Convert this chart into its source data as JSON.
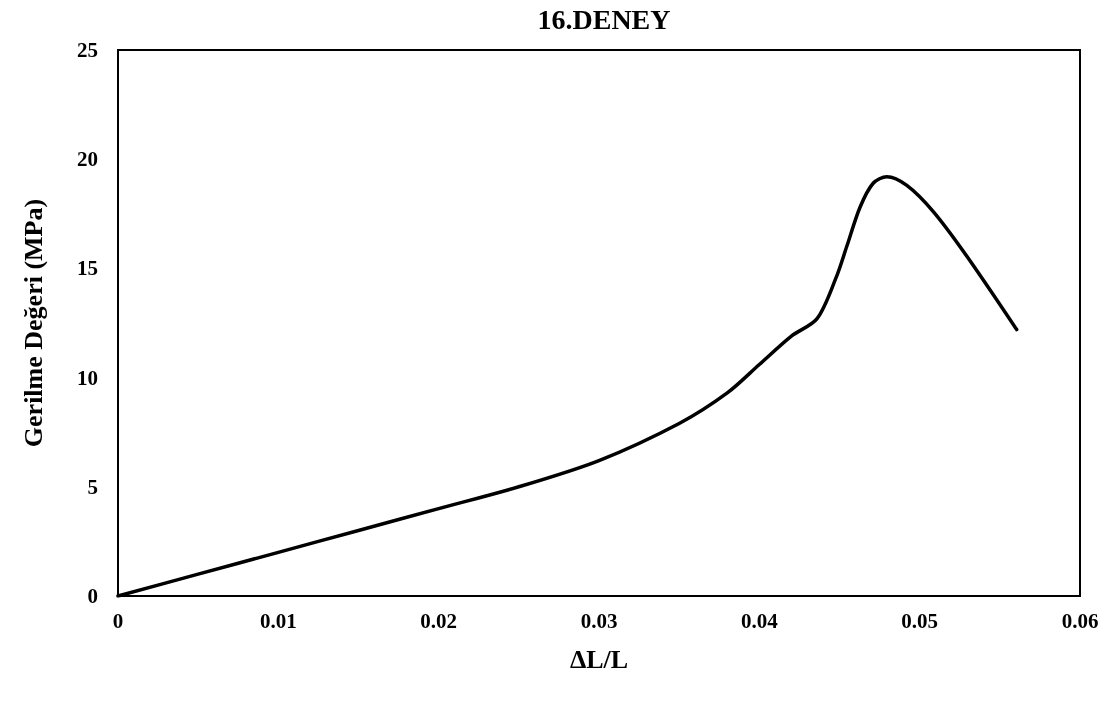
{
  "chart_data": {
    "type": "line",
    "title": "16.DENEY",
    "xlabel": "ΔL/L",
    "ylabel": "Gerilme Değeri (MPa)",
    "xlim": [
      0,
      0.06
    ],
    "xticks": [
      0,
      0.01,
      0.02,
      0.03,
      0.04,
      0.05,
      0.06
    ],
    "ylim": [
      0,
      25
    ],
    "yticks": [
      0,
      5,
      10,
      15,
      20,
      25
    ],
    "grid": false,
    "marker": "none",
    "line_style": "solid",
    "series": [
      {
        "color": "#000000",
        "x": [
          0,
          0.005,
          0.01,
          0.015,
          0.02,
          0.025,
          0.03,
          0.035,
          0.038,
          0.04,
          0.042,
          0.0436,
          0.0448,
          0.04545,
          0.04628,
          0.0471,
          0.04795,
          0.0492,
          0.05085,
          0.0529,
          0.05605
        ],
        "values": [
          0,
          1.0,
          2.0,
          3.0,
          4.0,
          5.0,
          6.2,
          7.9,
          9.3,
          10.6,
          11.9,
          12.7,
          14.6,
          16.0,
          17.8,
          18.9,
          19.2,
          18.8,
          17.6,
          15.6,
          12.2
        ]
      }
    ]
  }
}
